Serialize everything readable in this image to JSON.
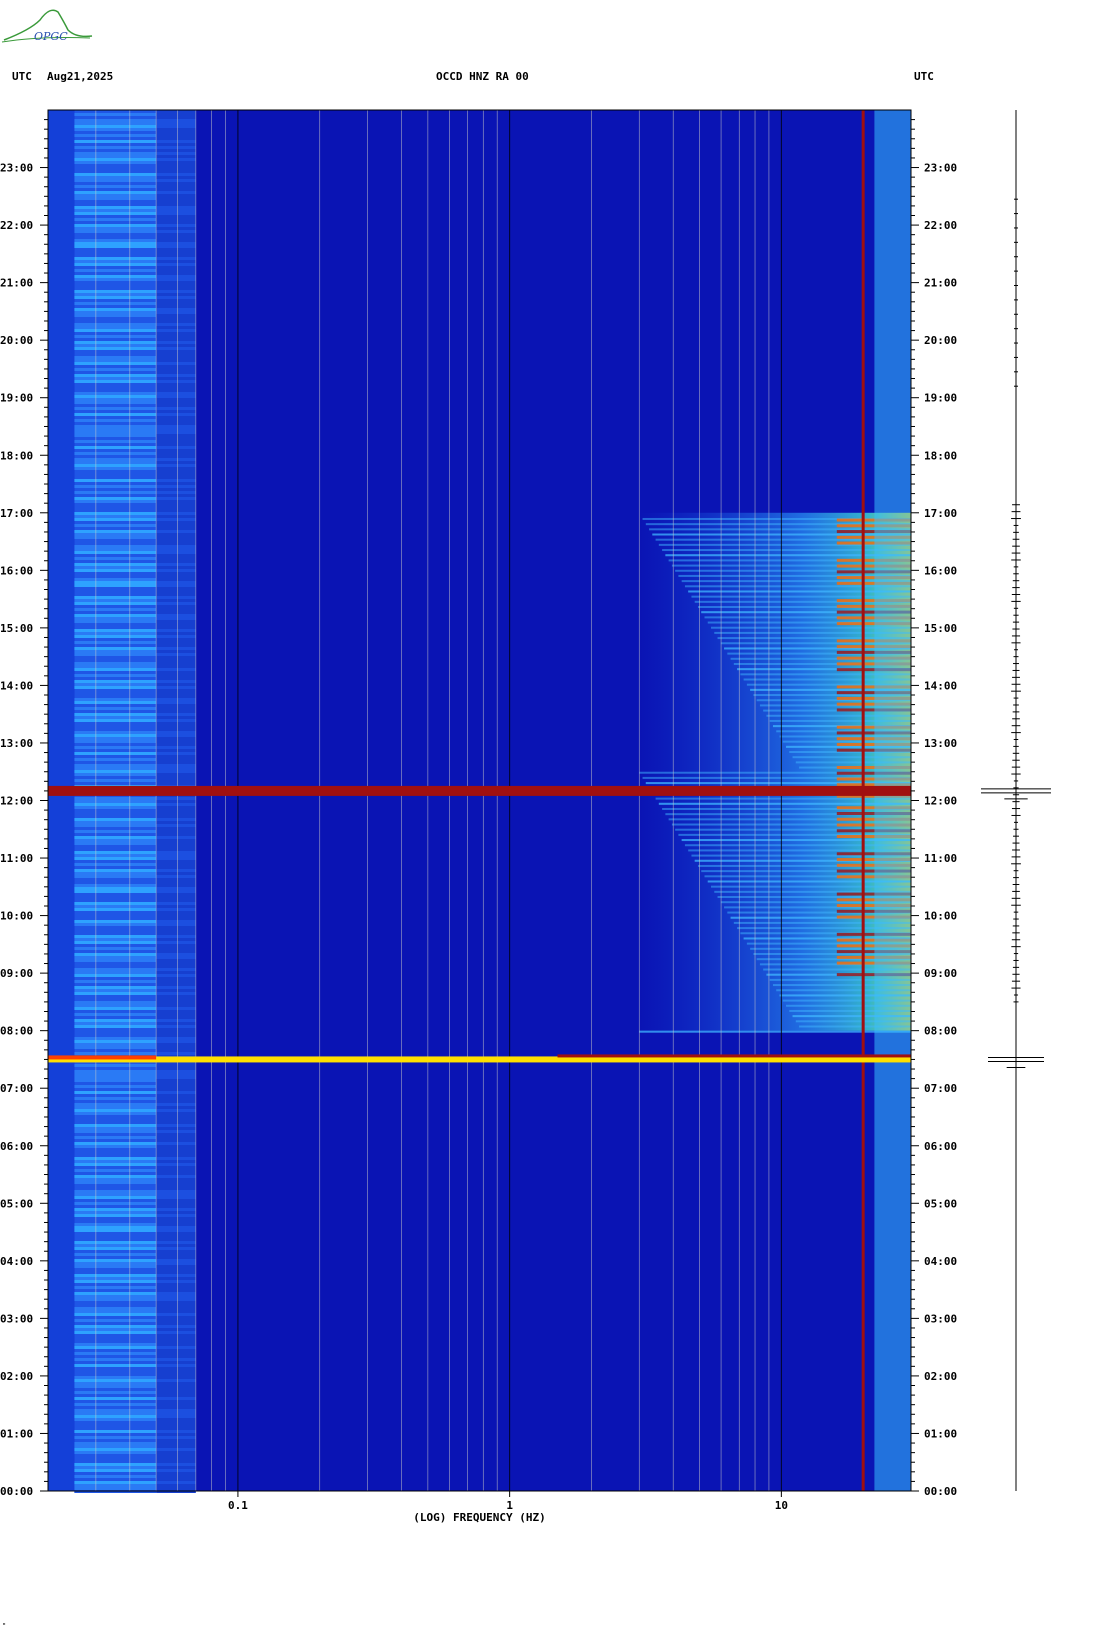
{
  "header": {
    "left_tz": "UTC",
    "date": "Aug21,2025",
    "station": "OCCD HNZ RA 00",
    "right_tz": "UTC"
  },
  "logo": {
    "text": "OPGC",
    "color": "#3a9a3a"
  },
  "colors": {
    "low": "#0a14b4",
    "mid": "#1a5cf0",
    "high": "#ffe000",
    "peak": "#a01010",
    "gridline": "#c9c9c9"
  },
  "chart_data": {
    "type": "heatmap",
    "title": "OCCD HNZ RA 00",
    "xlabel": "(LOG) FREQUENCY (HZ)",
    "x_scale": "log",
    "xlim": [
      0.02,
      30
    ],
    "x_ticks": [
      {
        "value": 0.1,
        "label": "0.1"
      },
      {
        "value": 1,
        "label": "1"
      },
      {
        "value": 10,
        "label": "10"
      }
    ],
    "ylim_hours": [
      0,
      24
    ],
    "y_ticks": [
      "00:00",
      "01:00",
      "02:00",
      "03:00",
      "04:00",
      "05:00",
      "06:00",
      "07:00",
      "08:00",
      "09:00",
      "10:00",
      "11:00",
      "12:00",
      "13:00",
      "14:00",
      "15:00",
      "16:00",
      "17:00",
      "18:00",
      "19:00",
      "20:00",
      "21:00",
      "22:00",
      "23:00"
    ],
    "events_utc": [
      {
        "time": "07:30",
        "band_hz": [
          0.02,
          30
        ],
        "level": "high"
      },
      {
        "time": "12:10",
        "band_hz": [
          0.02,
          30
        ],
        "level": "peak"
      }
    ],
    "persistent_line_hz": 20,
    "active_period_utc": [
      "08:00",
      "17:00"
    ],
    "active_band_hz": [
      3,
      30
    ]
  },
  "footer_mark": "\""
}
